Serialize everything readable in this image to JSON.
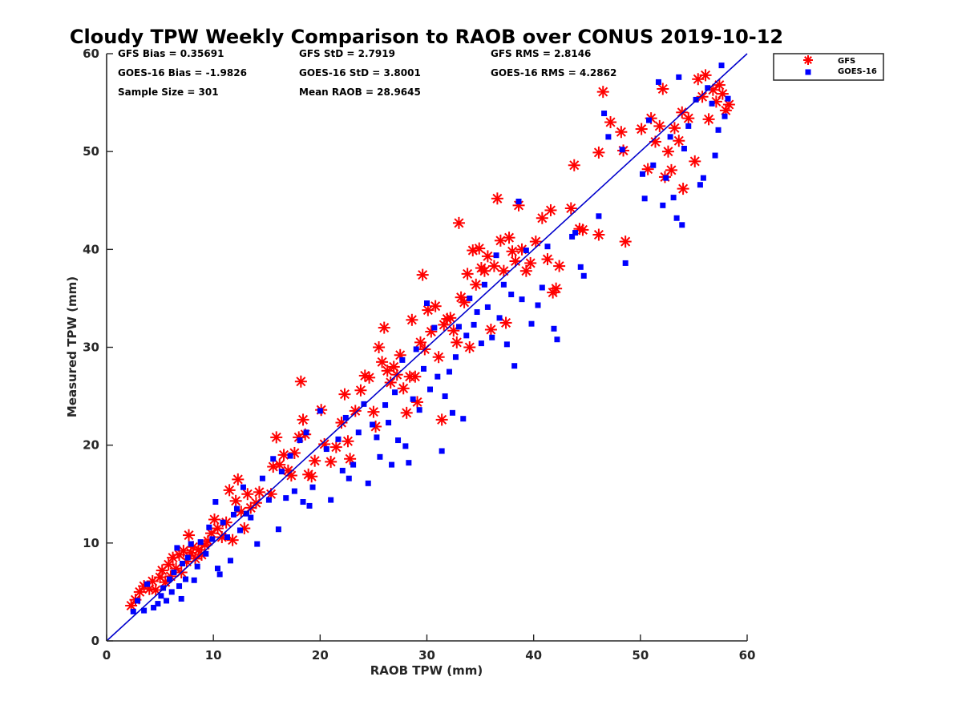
{
  "chart_data": {
    "type": "scatter",
    "title": "Cloudy TPW Weekly Comparison to RAOB over CONUS 2019-10-12",
    "xlabel": "RAOB TPW (mm)",
    "ylabel": "Measured TPW (mm)",
    "xlim": [
      0,
      60
    ],
    "ylim": [
      0,
      60
    ],
    "xticks": [
      "0",
      "10",
      "20",
      "30",
      "40",
      "50",
      "60"
    ],
    "yticks": [
      "0",
      "10",
      "20",
      "30",
      "40",
      "50",
      "60"
    ],
    "grid": false,
    "legend_position": "outside-top-right",
    "reference_line": {
      "name": "1:1 line",
      "x": [
        0,
        60
      ],
      "y": [
        0,
        60
      ],
      "color": "#0000cc"
    },
    "stats": [
      [
        "GFS Bias = 0.35691",
        "GFS StD = 2.7919",
        "GFS RMS = 2.8146"
      ],
      [
        "GOES-16 Bias = -1.9826",
        "GOES-16 StD = 3.8001",
        "GOES-16 RMS = 4.2862"
      ],
      [
        "Sample Size = 301",
        "Mean RAOB = 28.9645"
      ]
    ],
    "series": [
      {
        "name": "GFS",
        "marker": "asterisk",
        "color": "#ff0000",
        "points": [
          [
            2.3,
            3.6
          ],
          [
            2.7,
            4.2
          ],
          [
            3.1,
            5.0
          ],
          [
            3.5,
            5.6
          ],
          [
            4.0,
            5.3
          ],
          [
            4.3,
            6.1
          ],
          [
            4.6,
            5.2
          ],
          [
            5.0,
            6.5
          ],
          [
            5.2,
            7.2
          ],
          [
            5.5,
            6.0
          ],
          [
            5.8,
            7.8
          ],
          [
            6.0,
            6.6
          ],
          [
            6.2,
            8.5
          ],
          [
            6.5,
            7.4
          ],
          [
            6.8,
            8.8
          ],
          [
            7.0,
            7.0
          ],
          [
            7.2,
            9.2
          ],
          [
            7.5,
            8.1
          ],
          [
            7.7,
            10.8
          ],
          [
            7.9,
            9.0
          ],
          [
            8.1,
            9.6
          ],
          [
            8.3,
            8.4
          ],
          [
            8.6,
            9.3
          ],
          [
            8.9,
            8.8
          ],
          [
            9.2,
            9.8
          ],
          [
            9.5,
            10.2
          ],
          [
            9.8,
            11.0
          ],
          [
            10.1,
            12.4
          ],
          [
            10.4,
            11.5
          ],
          [
            10.8,
            10.6
          ],
          [
            11.2,
            12.1
          ],
          [
            11.5,
            15.4
          ],
          [
            11.8,
            10.3
          ],
          [
            12.1,
            14.3
          ],
          [
            12.3,
            16.5
          ],
          [
            12.6,
            13.2
          ],
          [
            12.9,
            11.5
          ],
          [
            13.2,
            15.0
          ],
          [
            13.5,
            13.6
          ],
          [
            14.0,
            14.1
          ],
          [
            14.3,
            15.2
          ],
          [
            15.4,
            15.0
          ],
          [
            15.6,
            17.8
          ],
          [
            15.9,
            20.8
          ],
          [
            16.2,
            18.0
          ],
          [
            16.6,
            19.0
          ],
          [
            17.0,
            17.4
          ],
          [
            17.3,
            16.9
          ],
          [
            17.6,
            19.2
          ],
          [
            18.0,
            20.8
          ],
          [
            18.2,
            26.5
          ],
          [
            18.4,
            22.6
          ],
          [
            18.6,
            21.1
          ],
          [
            18.9,
            17.0
          ],
          [
            19.2,
            16.8
          ],
          [
            19.5,
            18.4
          ],
          [
            20.1,
            23.6
          ],
          [
            20.4,
            20.1
          ],
          [
            21.0,
            18.3
          ],
          [
            21.5,
            19.8
          ],
          [
            22.0,
            22.3
          ],
          [
            22.3,
            25.2
          ],
          [
            22.6,
            20.4
          ],
          [
            22.8,
            18.6
          ],
          [
            23.3,
            23.5
          ],
          [
            23.8,
            25.6
          ],
          [
            24.2,
            27.1
          ],
          [
            24.6,
            26.9
          ],
          [
            25.0,
            23.4
          ],
          [
            25.2,
            21.9
          ],
          [
            25.5,
            30.0
          ],
          [
            25.8,
            28.5
          ],
          [
            26.0,
            32.0
          ],
          [
            26.3,
            27.6
          ],
          [
            26.6,
            26.4
          ],
          [
            26.9,
            28.0
          ],
          [
            27.2,
            27.2
          ],
          [
            27.5,
            29.2
          ],
          [
            27.8,
            25.8
          ],
          [
            28.1,
            23.3
          ],
          [
            28.4,
            27.0
          ],
          [
            28.6,
            32.8
          ],
          [
            28.9,
            27.0
          ],
          [
            29.1,
            24.4
          ],
          [
            29.4,
            30.5
          ],
          [
            29.6,
            37.4
          ],
          [
            29.8,
            29.8
          ],
          [
            30.1,
            33.8
          ],
          [
            30.4,
            31.6
          ],
          [
            30.8,
            34.2
          ],
          [
            31.1,
            29.0
          ],
          [
            31.4,
            22.6
          ],
          [
            31.6,
            32.3
          ],
          [
            31.9,
            32.9
          ],
          [
            32.2,
            33.0
          ],
          [
            32.5,
            31.7
          ],
          [
            32.8,
            30.5
          ],
          [
            33.0,
            42.7
          ],
          [
            33.2,
            35.1
          ],
          [
            33.5,
            34.6
          ],
          [
            33.8,
            37.5
          ],
          [
            34.0,
            30.0
          ],
          [
            34.3,
            39.9
          ],
          [
            34.6,
            36.4
          ],
          [
            34.9,
            40.1
          ],
          [
            35.1,
            38.1
          ],
          [
            35.4,
            37.8
          ],
          [
            35.7,
            39.3
          ],
          [
            36.0,
            31.8
          ],
          [
            36.3,
            38.3
          ],
          [
            36.6,
            45.2
          ],
          [
            36.9,
            40.9
          ],
          [
            37.2,
            37.8
          ],
          [
            37.4,
            32.5
          ],
          [
            37.7,
            41.2
          ],
          [
            38.0,
            39.8
          ],
          [
            38.3,
            38.8
          ],
          [
            38.6,
            44.5
          ],
          [
            38.9,
            40.0
          ],
          [
            39.3,
            37.8
          ],
          [
            39.7,
            38.6
          ],
          [
            40.2,
            40.8
          ],
          [
            40.8,
            43.2
          ],
          [
            41.3,
            39.0
          ],
          [
            41.6,
            44.0
          ],
          [
            41.8,
            35.6
          ],
          [
            42.1,
            36.0
          ],
          [
            42.4,
            38.3
          ],
          [
            43.5,
            44.2
          ],
          [
            43.8,
            48.6
          ],
          [
            44.3,
            42.1
          ],
          [
            44.6,
            42.0
          ],
          [
            46.1,
            41.5
          ],
          [
            46.1,
            49.9
          ],
          [
            46.5,
            56.1
          ],
          [
            47.2,
            53.0
          ],
          [
            48.2,
            52.0
          ],
          [
            48.4,
            50.1
          ],
          [
            48.6,
            40.8
          ],
          [
            50.1,
            52.3
          ],
          [
            50.7,
            48.2
          ],
          [
            51.0,
            53.4
          ],
          [
            51.4,
            51.0
          ],
          [
            51.8,
            52.6
          ],
          [
            52.1,
            56.4
          ],
          [
            52.3,
            47.4
          ],
          [
            52.6,
            50.0
          ],
          [
            52.9,
            48.1
          ],
          [
            53.2,
            52.4
          ],
          [
            53.6,
            51.1
          ],
          [
            53.9,
            54.0
          ],
          [
            54.0,
            46.2
          ],
          [
            54.5,
            53.4
          ],
          [
            55.1,
            49.0
          ],
          [
            55.4,
            57.4
          ],
          [
            55.8,
            55.6
          ],
          [
            56.1,
            57.8
          ],
          [
            56.4,
            53.3
          ],
          [
            56.8,
            56.3
          ],
          [
            57.1,
            55.1
          ],
          [
            57.4,
            56.8
          ],
          [
            57.7,
            55.9
          ],
          [
            58.0,
            54.2
          ],
          [
            58.3,
            54.8
          ]
        ]
      },
      {
        "name": "GOES-16",
        "marker": "square",
        "color": "#0000ff",
        "points": [
          [
            2.5,
            3.0
          ],
          [
            2.9,
            4.1
          ],
          [
            3.5,
            3.1
          ],
          [
            3.8,
            5.8
          ],
          [
            4.4,
            3.4
          ],
          [
            4.8,
            3.8
          ],
          [
            5.1,
            4.6
          ],
          [
            5.3,
            5.4
          ],
          [
            5.6,
            4.1
          ],
          [
            5.9,
            6.3
          ],
          [
            6.1,
            5.0
          ],
          [
            6.3,
            7.0
          ],
          [
            6.6,
            9.5
          ],
          [
            6.8,
            5.6
          ],
          [
            7.0,
            4.3
          ],
          [
            7.1,
            7.9
          ],
          [
            7.4,
            6.3
          ],
          [
            7.6,
            8.5
          ],
          [
            7.9,
            9.9
          ],
          [
            8.2,
            6.2
          ],
          [
            8.5,
            7.6
          ],
          [
            8.8,
            10.1
          ],
          [
            9.3,
            8.9
          ],
          [
            9.6,
            11.6
          ],
          [
            9.9,
            10.4
          ],
          [
            10.2,
            14.2
          ],
          [
            10.4,
            7.4
          ],
          [
            10.6,
            6.8
          ],
          [
            10.9,
            12.1
          ],
          [
            11.3,
            10.6
          ],
          [
            11.6,
            8.2
          ],
          [
            11.9,
            12.9
          ],
          [
            12.2,
            13.5
          ],
          [
            12.5,
            11.3
          ],
          [
            12.8,
            15.7
          ],
          [
            13.1,
            13.0
          ],
          [
            13.5,
            12.6
          ],
          [
            14.1,
            9.9
          ],
          [
            14.6,
            16.6
          ],
          [
            15.2,
            14.4
          ],
          [
            15.6,
            18.6
          ],
          [
            16.1,
            11.4
          ],
          [
            16.4,
            17.3
          ],
          [
            16.8,
            14.6
          ],
          [
            17.2,
            18.9
          ],
          [
            17.6,
            15.3
          ],
          [
            18.1,
            20.5
          ],
          [
            18.4,
            14.2
          ],
          [
            18.7,
            21.3
          ],
          [
            19.0,
            13.8
          ],
          [
            19.3,
            15.7
          ],
          [
            20.0,
            23.5
          ],
          [
            20.6,
            19.6
          ],
          [
            21.0,
            14.4
          ],
          [
            21.7,
            20.6
          ],
          [
            22.1,
            17.4
          ],
          [
            22.4,
            22.8
          ],
          [
            22.7,
            16.6
          ],
          [
            23.1,
            18.0
          ],
          [
            23.6,
            21.3
          ],
          [
            24.1,
            24.2
          ],
          [
            24.5,
            16.1
          ],
          [
            24.9,
            22.1
          ],
          [
            25.3,
            20.8
          ],
          [
            25.6,
            18.8
          ],
          [
            26.1,
            24.1
          ],
          [
            26.4,
            22.3
          ],
          [
            26.7,
            18.0
          ],
          [
            27.0,
            25.4
          ],
          [
            27.3,
            20.5
          ],
          [
            27.7,
            28.7
          ],
          [
            28.0,
            19.9
          ],
          [
            28.3,
            18.2
          ],
          [
            28.7,
            24.7
          ],
          [
            29.0,
            29.8
          ],
          [
            29.3,
            23.6
          ],
          [
            29.7,
            27.8
          ],
          [
            30.0,
            34.5
          ],
          [
            30.3,
            25.7
          ],
          [
            30.7,
            32.0
          ],
          [
            31.0,
            27.0
          ],
          [
            31.4,
            19.4
          ],
          [
            31.7,
            25.0
          ],
          [
            32.1,
            27.5
          ],
          [
            32.4,
            23.3
          ],
          [
            32.7,
            29.0
          ],
          [
            33.0,
            32.1
          ],
          [
            33.4,
            22.7
          ],
          [
            33.7,
            31.2
          ],
          [
            34.0,
            35.0
          ],
          [
            34.4,
            32.3
          ],
          [
            34.7,
            33.6
          ],
          [
            35.1,
            30.4
          ],
          [
            35.4,
            36.4
          ],
          [
            35.7,
            34.1
          ],
          [
            36.1,
            31.0
          ],
          [
            36.5,
            39.4
          ],
          [
            36.8,
            33.0
          ],
          [
            37.2,
            36.4
          ],
          [
            37.5,
            30.3
          ],
          [
            37.9,
            35.4
          ],
          [
            38.2,
            28.1
          ],
          [
            38.6,
            44.9
          ],
          [
            38.9,
            34.9
          ],
          [
            39.3,
            39.9
          ],
          [
            39.8,
            32.4
          ],
          [
            40.4,
            34.3
          ],
          [
            40.8,
            36.1
          ],
          [
            41.3,
            40.3
          ],
          [
            41.9,
            31.9
          ],
          [
            42.2,
            30.8
          ],
          [
            43.6,
            41.3
          ],
          [
            43.9,
            41.7
          ],
          [
            44.4,
            38.2
          ],
          [
            44.7,
            37.3
          ],
          [
            46.1,
            43.4
          ],
          [
            46.6,
            53.9
          ],
          [
            47.0,
            51.5
          ],
          [
            48.3,
            50.2
          ],
          [
            48.6,
            38.6
          ],
          [
            50.2,
            47.7
          ],
          [
            50.4,
            45.2
          ],
          [
            50.8,
            53.2
          ],
          [
            51.2,
            48.6
          ],
          [
            51.7,
            57.1
          ],
          [
            52.1,
            44.5
          ],
          [
            52.4,
            47.3
          ],
          [
            52.8,
            51.5
          ],
          [
            53.1,
            45.3
          ],
          [
            53.4,
            43.2
          ],
          [
            53.6,
            57.6
          ],
          [
            53.9,
            42.5
          ],
          [
            54.1,
            50.3
          ],
          [
            54.5,
            52.6
          ],
          [
            55.2,
            55.3
          ],
          [
            55.6,
            46.6
          ],
          [
            55.9,
            47.3
          ],
          [
            56.3,
            56.5
          ],
          [
            56.7,
            54.9
          ],
          [
            57.0,
            49.6
          ],
          [
            57.3,
            52.2
          ],
          [
            57.6,
            58.8
          ],
          [
            57.9,
            53.6
          ],
          [
            58.2,
            55.4
          ]
        ]
      }
    ]
  }
}
